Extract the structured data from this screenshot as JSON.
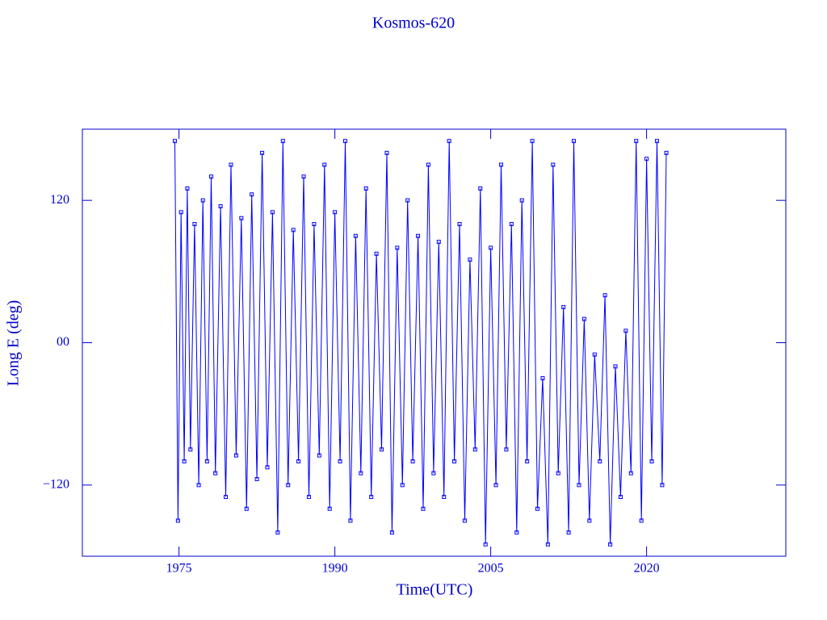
{
  "chart_data": {
    "type": "line",
    "title": "Kosmos-620",
    "x_label": "Time(UTC)",
    "y_label": "Long E (deg)",
    "xlim": [
      1965.7,
      2033.4
    ],
    "ylim": [
      -180,
      180
    ],
    "xticks": [
      1975,
      1990,
      2005,
      2020
    ],
    "yticks": [
      {
        "value": 120,
        "label": "120"
      },
      {
        "value": 0,
        "label": "00"
      },
      {
        "value": -120,
        "label": "−120"
      }
    ],
    "x": [
      1974.6,
      1974.9,
      1975.2,
      1975.5,
      1975.8,
      1976.1,
      1976.5,
      1976.9,
      1977.3,
      1977.7,
      1978.1,
      1978.5,
      1979.0,
      1979.5,
      1980.0,
      1980.5,
      1981.0,
      1981.5,
      1982.0,
      1982.5,
      1983.0,
      1983.5,
      1984.0,
      1984.5,
      1985.0,
      1985.5,
      1986.0,
      1986.5,
      1987.0,
      1987.5,
      1988.0,
      1988.5,
      1989.0,
      1989.5,
      1990.0,
      1990.5,
      1991.0,
      1991.5,
      1992.0,
      1992.5,
      1993.0,
      1993.5,
      1994.0,
      1994.5,
      1995.0,
      1995.5,
      1996.0,
      1996.5,
      1997.0,
      1997.5,
      1998.0,
      1998.5,
      1999.0,
      1999.5,
      2000.0,
      2000.5,
      2001.0,
      2001.5,
      2002.0,
      2002.5,
      2003.0,
      2003.5,
      2004.0,
      2004.5,
      2005.0,
      2005.5,
      2006.0,
      2006.5,
      2007.0,
      2007.5,
      2008.0,
      2008.5,
      2009.0,
      2009.5,
      2010.0,
      2010.5,
      2011.0,
      2011.5,
      2012.0,
      2012.5,
      2013.0,
      2013.5,
      2014.0,
      2014.5,
      2015.0,
      2015.5,
      2016.0,
      2016.5,
      2017.0,
      2017.5,
      2018.0,
      2018.5,
      2019.0,
      2019.5,
      2020.0,
      2020.5,
      2021.0,
      2021.5,
      2021.9
    ],
    "series": [
      {
        "color": "#0000ff",
        "values": [
          170,
          -150,
          110,
          -100,
          130,
          -90,
          100,
          -120,
          120,
          -100,
          140,
          -110,
          115,
          -130,
          150,
          -95,
          105,
          -140,
          125,
          -115,
          160,
          -105,
          110,
          -160,
          170,
          -120,
          95,
          -100,
          140,
          -130,
          100,
          -95,
          150,
          -140,
          110,
          -100,
          170,
          -150,
          90,
          -110,
          130,
          -130,
          75,
          -90,
          160,
          -160,
          80,
          -120,
          120,
          -100,
          90,
          -140,
          150,
          -110,
          85,
          -130,
          170,
          -100,
          100,
          -150,
          70,
          -90,
          130,
          -170,
          80,
          -120,
          150,
          -90,
          100,
          -160,
          120,
          -100,
          170,
          -140,
          -30,
          -170,
          150,
          -110,
          30,
          -160,
          170,
          -120,
          20,
          -150,
          -10,
          -100,
          40,
          -170,
          -20,
          -130,
          10,
          -110,
          170,
          -150,
          155,
          -100,
          170,
          -120,
          160
        ]
      }
    ]
  }
}
